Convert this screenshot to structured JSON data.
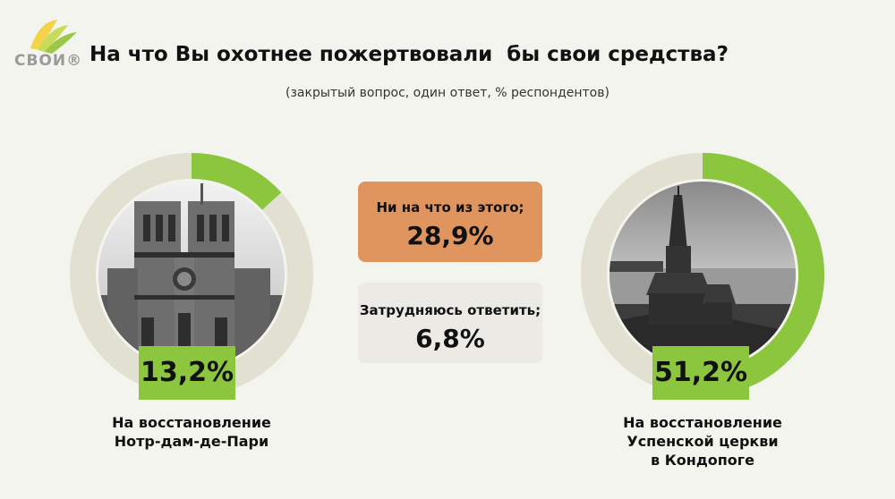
{
  "header": {
    "logo_text": "СВОИ®",
    "title": "На что Вы охотнее пожертвовали  бы свои средства?",
    "subtitle": "(закрытый вопрос, один ответ, % респондентов)"
  },
  "colors": {
    "accent_green": "#8cc63f",
    "ring_track": "#e2e0d0",
    "orange": "#e0955e",
    "grey_box": "#ebeae5"
  },
  "chart_data": {
    "type": "pie",
    "categories": [
      "На восстановление Нотр-дам-де-Пари",
      "На восстановление Успенской церкви в Кондопоге",
      "Ни на что из этого;",
      "Затрудняюсь ответить;"
    ],
    "values": [
      13.2,
      51.2,
      28.9,
      6.8
    ],
    "labels": [
      "13,2%",
      "51,2%",
      "28,9%",
      "6,8%"
    ],
    "unit": "%"
  },
  "left_donut": {
    "value": 13.2,
    "label": "13,2%",
    "caption": "На восстановление\nНотр-дам-де-Пари",
    "image": "notre-dame-photo"
  },
  "right_donut": {
    "value": 51.2,
    "label": "51,2%",
    "caption": "На восстановление\nУспенской церкви\nв Кондопоге",
    "image": "kondopoga-church-photo"
  },
  "middle": {
    "none_label": "Ни на что из этого;",
    "none_value": "28,9%",
    "unsure_label": "Затрудняюсь ответить;",
    "unsure_value": "6,8%"
  }
}
